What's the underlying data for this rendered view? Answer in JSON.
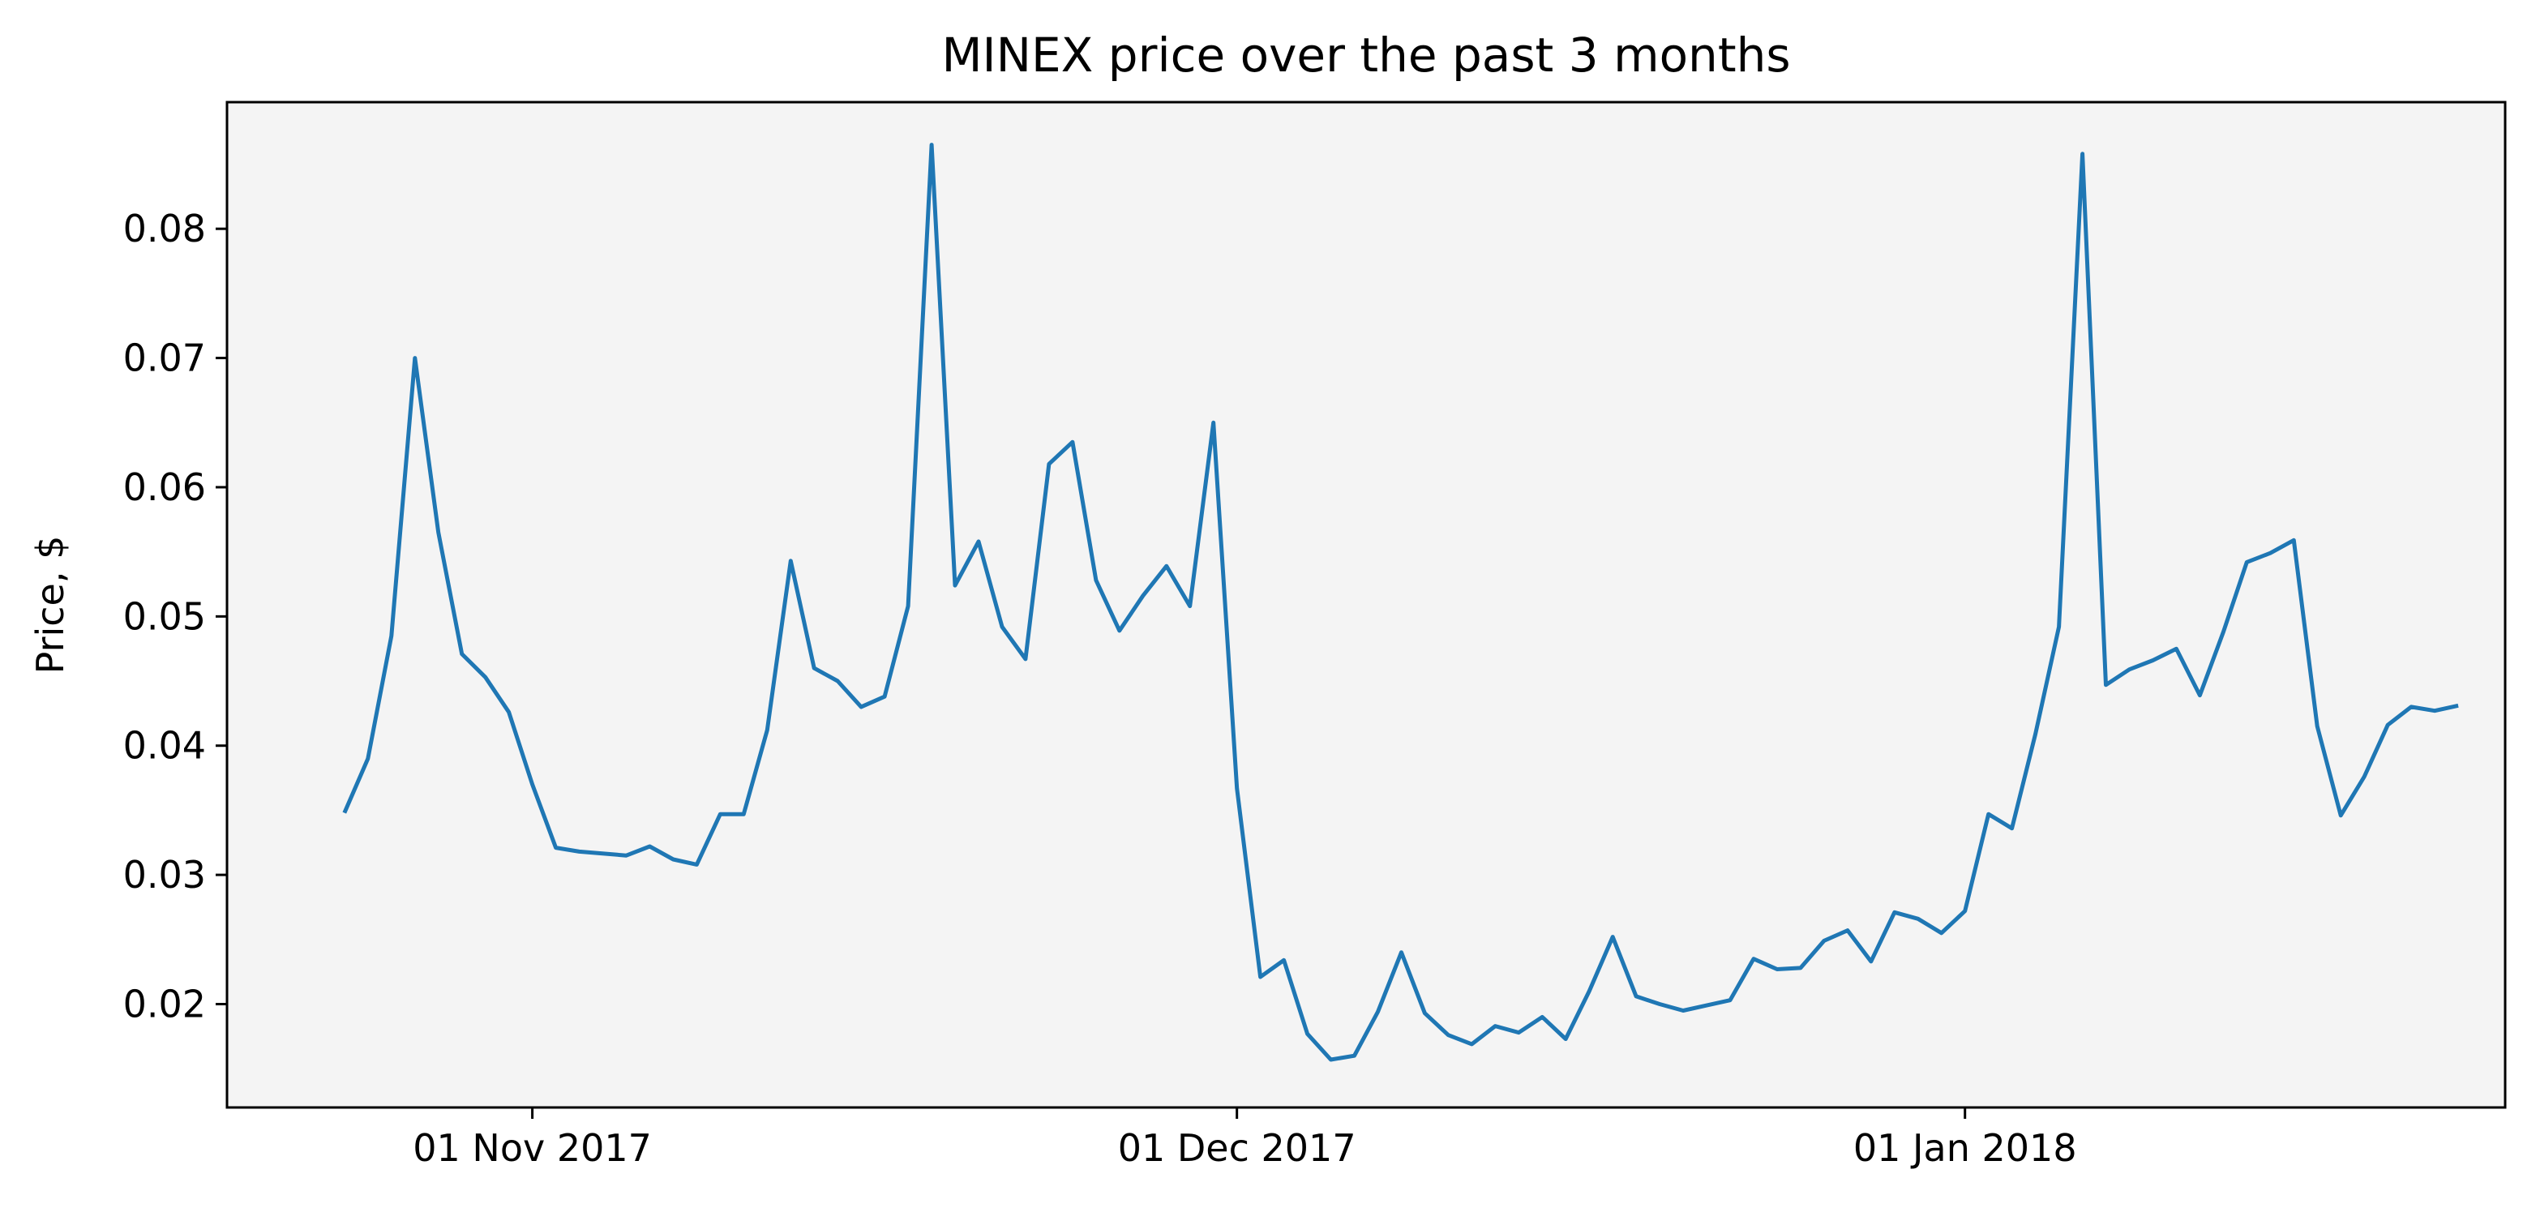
{
  "chart_data": {
    "type": "line",
    "title": "MINEX price over the past 3 months",
    "xlabel": "",
    "ylabel": "Price, $",
    "xlim": [
      "2017-10-19",
      "2018-01-24"
    ],
    "ylim": [
      0.012,
      0.0898
    ],
    "grid": false,
    "legend": "none",
    "x_ticks": [
      "2017-11-01",
      "2017-12-01",
      "2018-01-01"
    ],
    "x_tick_labels": [
      "01 Nov 2017",
      "01 Dec 2017",
      "01 Jan 2018"
    ],
    "y_ticks": [
      0.02,
      0.03,
      0.04,
      0.05,
      0.06,
      0.07,
      0.08
    ],
    "y_tick_labels": [
      "0.02",
      "0.03",
      "0.04",
      "0.05",
      "0.06",
      "0.07",
      "0.08"
    ],
    "colors": {
      "line": "#1f77b4",
      "plot_background": "#f4f4f4",
      "axes": "#000000"
    },
    "series": [
      {
        "x": [
          "2017-10-24",
          "2017-10-25",
          "2017-10-26",
          "2017-10-27",
          "2017-10-28",
          "2017-10-29",
          "2017-10-30",
          "2017-10-31",
          "2017-11-01",
          "2017-11-02",
          "2017-11-03",
          "2017-11-05",
          "2017-11-06",
          "2017-11-07",
          "2017-11-08",
          "2017-11-09",
          "2017-11-10",
          "2017-11-11",
          "2017-11-12",
          "2017-11-13",
          "2017-11-14",
          "2017-11-15",
          "2017-11-16",
          "2017-11-17",
          "2017-11-18",
          "2017-11-19",
          "2017-11-20",
          "2017-11-21",
          "2017-11-22",
          "2017-11-23",
          "2017-11-24",
          "2017-11-25",
          "2017-11-26",
          "2017-11-27",
          "2017-11-28",
          "2017-11-29",
          "2017-11-30",
          "2017-12-01",
          "2017-12-02",
          "2017-12-03",
          "2017-12-04",
          "2017-12-05",
          "2017-12-06",
          "2017-12-07",
          "2017-12-08",
          "2017-12-09",
          "2017-12-10",
          "2017-12-11",
          "2017-12-12",
          "2017-12-13",
          "2017-12-14",
          "2017-12-15",
          "2017-12-16",
          "2017-12-17",
          "2017-12-18",
          "2017-12-19",
          "2017-12-20",
          "2017-12-21",
          "2017-12-22",
          "2017-12-23",
          "2017-12-24",
          "2017-12-25",
          "2017-12-26",
          "2017-12-27",
          "2017-12-28",
          "2017-12-29",
          "2017-12-30",
          "2017-12-31",
          "2018-01-01",
          "2018-01-02",
          "2018-01-03",
          "2018-01-04",
          "2018-01-05",
          "2018-01-06",
          "2018-01-07",
          "2018-01-08",
          "2018-01-09",
          "2018-01-10",
          "2018-01-11",
          "2018-01-12",
          "2018-01-13",
          "2018-01-14",
          "2018-01-15",
          "2018-01-16",
          "2018-01-17",
          "2018-01-18",
          "2018-01-19",
          "2018-01-20",
          "2018-01-21",
          "2018-01-22"
        ],
        "values": [
          0.0348,
          0.039,
          0.0485,
          0.07,
          0.0565,
          0.0471,
          0.0453,
          0.0426,
          0.037,
          0.0321,
          0.0318,
          0.0315,
          0.0322,
          0.0312,
          0.0308,
          0.0347,
          0.0347,
          0.0412,
          0.0543,
          0.046,
          0.045,
          0.043,
          0.0438,
          0.0508,
          0.0865,
          0.0524,
          0.0558,
          0.0492,
          0.0467,
          0.0618,
          0.0635,
          0.0528,
          0.0489,
          0.0516,
          0.0539,
          0.0508,
          0.065,
          0.0367,
          0.0221,
          0.0234,
          0.0177,
          0.0157,
          0.016,
          0.0194,
          0.024,
          0.0193,
          0.0176,
          0.0169,
          0.0183,
          0.0178,
          0.019,
          0.0173,
          0.021,
          0.0252,
          0.0206,
          0.02,
          0.0195,
          0.0199,
          0.0203,
          0.0235,
          0.0227,
          0.0228,
          0.0249,
          0.0257,
          0.0233,
          0.0271,
          0.0266,
          0.0255,
          0.0272,
          0.0347,
          0.0336,
          0.0409,
          0.0492,
          0.0858,
          0.0447,
          0.0459,
          0.0466,
          0.0475,
          0.0439,
          0.0488,
          0.0542,
          0.0549,
          0.0559,
          0.0415,
          0.0346,
          0.0376,
          0.0416,
          0.043,
          0.0427,
          0.0431
        ]
      }
    ]
  }
}
